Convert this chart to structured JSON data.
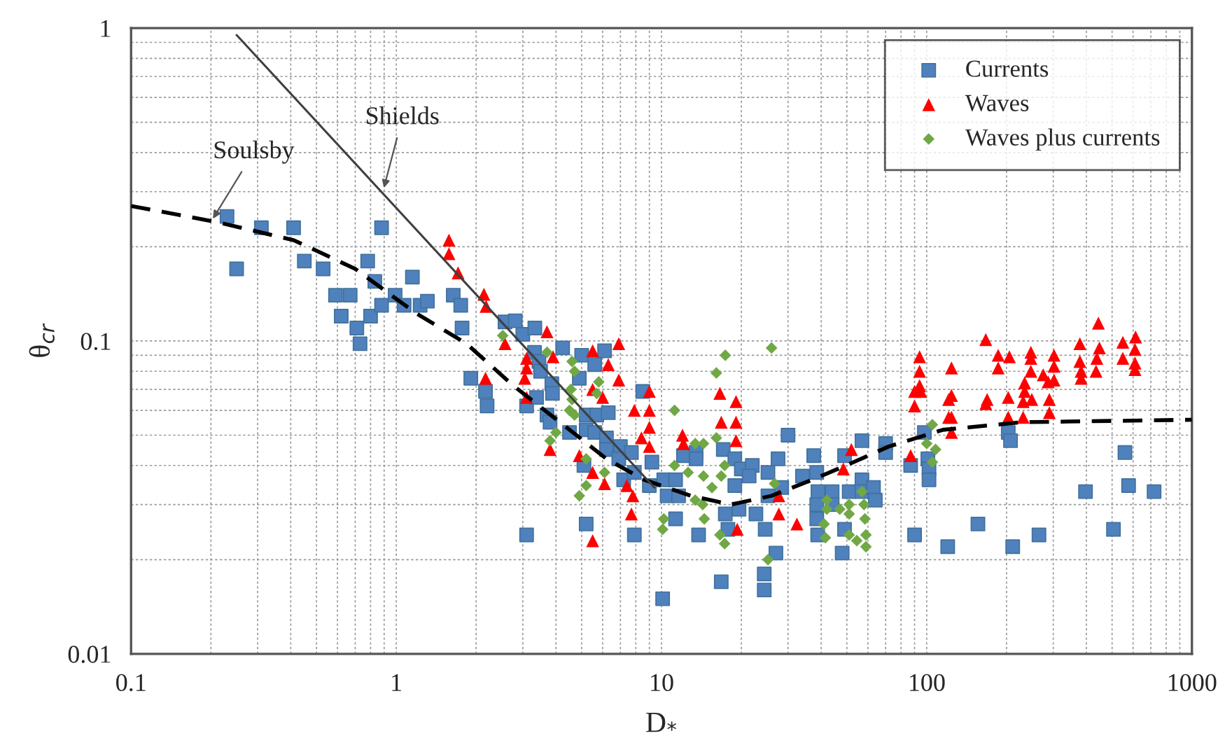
{
  "chart_data": {
    "type": "scatter",
    "xlabel": "D$_{*}$",
    "ylabel": "θ$_{cr}$",
    "log": "xy",
    "grid": true,
    "legend": "top right",
    "xlim": [
      0.1,
      1000
    ],
    "xticks": [
      0.1,
      1,
      10,
      100,
      1000
    ],
    "ylim": [
      0.01,
      1
    ],
    "yticks": [
      0.01,
      0.1,
      1
    ],
    "series": [
      {
        "name": "Currents",
        "marker": "square",
        "color": "#4f81bd",
        "x": [
          0.23,
          0.25,
          0.31,
          0.41,
          0.45,
          0.53,
          0.59,
          0.62,
          0.67,
          0.71,
          0.73,
          0.78,
          0.8,
          0.83,
          0.88,
          0.88,
          0.99,
          1.07,
          1.15,
          1.23,
          1.31,
          1.64,
          1.75,
          1.77,
          1.91,
          2.17,
          2.2,
          2.57,
          2.81,
          3.0,
          3.33,
          3.32,
          3.45,
          3.5,
          3.86,
          3.88,
          4.24,
          3.1,
          3.38,
          3.7,
          3.8,
          4.5,
          5.0,
          5.6,
          6.1,
          4.9,
          5.2,
          5.7,
          6.3,
          5.2,
          5.6,
          6.2,
          6.2,
          7.0,
          7.7,
          6.9,
          5.1,
          7.2,
          7.9,
          8.5,
          9.2,
          9.0,
          10.2,
          11.3,
          10.5,
          11.6,
          12.1,
          13.5,
          13.5,
          17.1,
          18.9,
          20,
          22,
          18.9,
          17.4,
          17.8,
          19.6,
          22.7,
          25.2,
          25.2,
          3.1,
          5.2,
          7.9,
          11.3,
          13.8,
          16.8,
          10.1,
          24.4,
          24.4,
          21.4,
          27.5,
          28.4,
          24.6,
          27,
          30,
          37.5,
          34,
          38.5,
          38.9,
          38.5,
          38.5,
          38.8,
          44,
          44,
          49,
          57,
          51,
          57,
          57,
          63,
          64,
          49,
          48,
          70,
          70,
          87,
          98,
          101,
          102,
          102,
          90,
          120,
          156,
          203,
          207,
          211,
          265,
          397,
          506,
          559,
          577,
          720
        ],
        "values": [
          0.25,
          0.17,
          0.23,
          0.23,
          0.18,
          0.17,
          0.14,
          0.12,
          0.14,
          0.11,
          0.098,
          0.18,
          0.12,
          0.155,
          0.23,
          0.13,
          0.14,
          0.13,
          0.16,
          0.13,
          0.134,
          0.14,
          0.13,
          0.11,
          0.076,
          0.069,
          0.062,
          0.115,
          0.116,
          0.105,
          0.11,
          0.092,
          0.086,
          0.08,
          0.073,
          0.068,
          0.095,
          0.062,
          0.066,
          0.058,
          0.055,
          0.051,
          0.09,
          0.084,
          0.093,
          0.076,
          0.058,
          0.058,
          0.059,
          0.052,
          0.051,
          0.049,
          0.045,
          0.046,
          0.044,
          0.042,
          0.04,
          0.036,
          0.038,
          0.069,
          0.041,
          0.0345,
          0.036,
          0.036,
          0.032,
          0.032,
          0.043,
          0.044,
          0.042,
          0.045,
          0.042,
          0.039,
          0.04,
          0.0345,
          0.028,
          0.025,
          0.029,
          0.028,
          0.038,
          0.032,
          0.024,
          0.026,
          0.024,
          0.027,
          0.024,
          0.017,
          0.015,
          0.018,
          0.016,
          0.037,
          0.042,
          0.034,
          0.025,
          0.021,
          0.05,
          0.043,
          0.037,
          0.038,
          0.033,
          0.03,
          0.027,
          0.024,
          0.033,
          0.03,
          0.043,
          0.048,
          0.033,
          0.036,
          0.033,
          0.034,
          0.031,
          0.025,
          0.021,
          0.047,
          0.044,
          0.04,
          0.051,
          0.042,
          0.039,
          0.036,
          0.024,
          0.022,
          0.026,
          0.051,
          0.048,
          0.022,
          0.024,
          0.033,
          0.025,
          0.044,
          0.0345,
          0.033
        ]
      },
      {
        "name": "Waves",
        "marker": "triangle",
        "color": "#ff0000",
        "x": [
          1.58,
          1.58,
          1.71,
          2.14,
          2.18,
          2.17,
          3.7,
          2.57,
          3.1,
          3.1,
          3.05,
          3.9,
          3.1,
          5.5,
          6.3,
          6.9,
          6.9,
          5.5,
          6.0,
          7.9,
          9.0,
          9.0,
          9.0,
          8.4,
          9.0,
          3.8,
          4.9,
          5.5,
          6.1,
          7.4,
          7.8,
          7.7,
          5.5,
          12.0,
          12.1,
          16.6,
          19.1,
          16.8,
          19.1,
          19.1,
          27.7,
          27.7,
          19.3,
          32.4,
          52,
          48.5,
          94,
          94,
          94,
          90,
          95,
          90,
          87,
          121,
          121,
          124,
          124,
          124,
          124,
          167,
          169,
          167,
          186,
          186,
          205,
          203,
          203,
          247,
          247,
          247,
          234,
          234,
          249,
          231,
          231,
          275,
          287,
          302,
          302,
          302,
          290,
          290,
          378,
          378,
          382,
          382,
          444,
          448,
          438,
          435,
          549,
          549,
          613,
          610,
          610,
          610
        ],
        "values": [
          0.21,
          0.19,
          0.165,
          0.141,
          0.129,
          0.076,
          0.107,
          0.098,
          0.088,
          0.082,
          0.076,
          0.089,
          0.066,
          0.093,
          0.084,
          0.098,
          0.075,
          0.07,
          0.066,
          0.06,
          0.06,
          0.069,
          0.053,
          0.049,
          0.046,
          0.045,
          0.043,
          0.038,
          0.035,
          0.0345,
          0.032,
          0.028,
          0.023,
          0.05,
          0.047,
          0.068,
          0.064,
          0.055,
          0.055,
          0.048,
          0.032,
          0.028,
          0.025,
          0.026,
          0.045,
          0.039,
          0.089,
          0.08,
          0.072,
          0.069,
          0.069,
          0.062,
          0.043,
          0.065,
          0.057,
          0.082,
          0.067,
          0.057,
          0.051,
          0.101,
          0.065,
          0.063,
          0.09,
          0.082,
          0.089,
          0.066,
          0.057,
          0.092,
          0.088,
          0.08,
          0.0735,
          0.069,
          0.065,
          0.064,
          0.057,
          0.078,
          0.074,
          0.09,
          0.083,
          0.075,
          0.065,
          0.059,
          0.098,
          0.086,
          0.08,
          0.076,
          0.114,
          0.095,
          0.088,
          0.08,
          0.099,
          0.088,
          0.103,
          0.094,
          0.085,
          0.081
        ]
      },
      {
        "name": "Waves plus currents",
        "marker": "diamond",
        "color": "#70a845",
        "x": [
          2.52,
          3.7,
          4.6,
          4.7,
          4.55,
          4.6,
          4.5,
          4.7,
          4.0,
          3.8,
          5.8,
          5.7,
          5.2,
          6.1,
          5.2,
          4.9,
          17.4,
          16.1,
          11.2,
          13.4,
          14.4,
          16.1,
          11.2,
          12.6,
          14.4,
          15.5,
          13.4,
          17.3,
          16.8,
          14.3,
          14.5,
          10.2,
          10.1,
          17.3,
          25.2,
          26,
          16.6,
          26.7,
          42,
          42,
          47,
          41,
          41.5,
          51,
          51,
          57,
          58,
          58.5,
          51,
          54.5,
          59,
          59,
          105,
          100,
          108,
          105
        ],
        "values": [
          0.104,
          0.092,
          0.086,
          0.08,
          0.07,
          0.065,
          0.06,
          0.058,
          0.051,
          0.048,
          0.074,
          0.068,
          0.042,
          0.038,
          0.0345,
          0.032,
          0.09,
          0.079,
          0.06,
          0.047,
          0.047,
          0.049,
          0.04,
          0.038,
          0.037,
          0.034,
          0.031,
          0.04,
          0.037,
          0.03,
          0.027,
          0.027,
          0.025,
          0.0225,
          0.02,
          0.095,
          0.024,
          0.035,
          0.031,
          0.029,
          0.029,
          0.026,
          0.0235,
          0.03,
          0.028,
          0.033,
          0.03,
          0.027,
          0.024,
          0.023,
          0.024,
          0.022,
          0.054,
          0.047,
          0.045,
          0.041
        ]
      },
      {
        "type": "line",
        "line_style": "dashed",
        "color": "#000000",
        "x": [
          0.1,
          0.21,
          0.41,
          0.7,
          1.18,
          1.84,
          2.76,
          4.14,
          6.2,
          8.6,
          12.9,
          18.3,
          26,
          38.5,
          53,
          72,
          115,
          229,
          1000
        ],
        "values": [
          0.27,
          0.24,
          0.21,
          0.17,
          0.123,
          0.098,
          0.072,
          0.055,
          0.042,
          0.036,
          0.032,
          0.03,
          0.032,
          0.0365,
          0.041,
          0.046,
          0.052,
          0.055,
          0.056
        ]
      },
      {
        "type": "line",
        "line_style": "solid",
        "color": "#404040",
        "x": [
          0.25,
          9.4
        ],
        "values": [
          0.95,
          0.034
        ]
      }
    ],
    "annotations": [
      {
        "text": "Soulsby",
        "x": 0.2,
        "y": 0.24
      },
      {
        "text": "Shields",
        "x": 0.89,
        "y": 0.3
      }
    ]
  }
}
